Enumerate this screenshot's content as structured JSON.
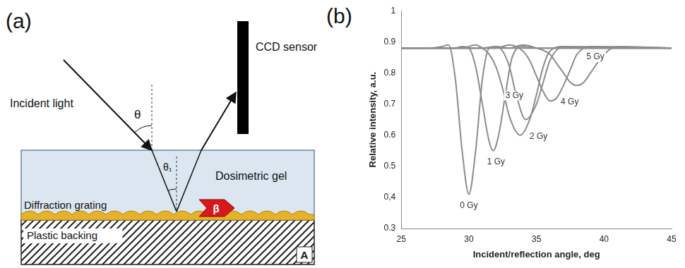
{
  "diagram": {
    "panel_label": "(a)",
    "incident_light": "Incident light",
    "theta": "θ",
    "theta_1": "θ₁",
    "ccd_sensor": "CCD sensor",
    "dosimetric_gel": "Dosimetric gel",
    "diffraction_grating": "Diffraction grating",
    "beta": "β",
    "plastic_backing": "Plastic backing",
    "corner_label": "A"
  },
  "chart_data": {
    "type": "line",
    "panel_label": "(b)",
    "x_label": "Incident/reflection angle, deg",
    "y_label": "Relative intensity, a.u.",
    "xlim": [
      25,
      45
    ],
    "xticks": [
      25,
      30,
      35,
      40,
      45
    ],
    "ylim": [
      0.3,
      1
    ],
    "yticks": [
      0.3,
      {
        "value": 0.4,
        "label": "0,4"
      },
      0.5,
      0.6,
      0.7,
      0.8,
      0.9,
      1
    ],
    "grid": false,
    "marker": "none",
    "line_style": "solid",
    "series": [
      {
        "name": "0 Gy",
        "color": "#8c8c8c",
        "x": [
          25,
          27,
          28,
          28.5,
          29,
          29.5,
          30,
          30.5,
          31,
          31.5,
          32,
          33,
          35,
          45
        ],
        "values": [
          0.88,
          0.88,
          0.885,
          0.89,
          0.78,
          0.55,
          0.41,
          0.55,
          0.78,
          0.88,
          0.885,
          0.88,
          0.88,
          0.88
        ]
      },
      {
        "name": "1 Gy",
        "color": "#8c8c8c",
        "x": [
          25,
          29,
          29.5,
          30,
          30.5,
          31,
          31.5,
          31.8,
          32.2,
          32.7,
          33.2,
          34,
          35,
          45
        ],
        "values": [
          0.88,
          0.88,
          0.885,
          0.88,
          0.82,
          0.7,
          0.58,
          0.55,
          0.6,
          0.73,
          0.85,
          0.885,
          0.88,
          0.88
        ]
      },
      {
        "name": "2 Gy",
        "color": "#8c8c8c",
        "x": [
          25,
          29.5,
          30.5,
          31,
          31.5,
          32,
          32.5,
          33,
          33.8,
          34.5,
          35,
          35.5,
          36,
          37,
          45
        ],
        "values": [
          0.88,
          0.88,
          0.89,
          0.88,
          0.86,
          0.82,
          0.75,
          0.66,
          0.6,
          0.65,
          0.73,
          0.82,
          0.87,
          0.885,
          0.88
        ]
      },
      {
        "name": "3 Gy",
        "color": "#8c8c8c",
        "x": [
          25,
          31,
          32,
          32.5,
          33,
          33.5,
          34.2,
          35,
          35.5,
          36,
          37,
          38,
          45
        ],
        "values": [
          0.88,
          0.88,
          0.885,
          0.87,
          0.82,
          0.73,
          0.65,
          0.7,
          0.77,
          0.84,
          0.885,
          0.88,
          0.88
        ]
      },
      {
        "name": "4 Gy",
        "color": "#8c8c8c",
        "x": [
          25,
          32,
          33,
          34,
          34.5,
          35,
          35.5,
          36,
          36.5,
          37,
          37.5,
          38,
          39,
          45
        ],
        "values": [
          0.88,
          0.88,
          0.89,
          0.87,
          0.84,
          0.79,
          0.74,
          0.71,
          0.72,
          0.76,
          0.81,
          0.86,
          0.885,
          0.88
        ]
      },
      {
        "name": "5 Gy",
        "color": "#8c8c8c",
        "x": [
          25,
          33,
          34,
          35,
          36,
          36.5,
          37,
          37.5,
          38,
          38.5,
          39,
          40,
          41,
          45
        ],
        "values": [
          0.88,
          0.88,
          0.89,
          0.88,
          0.86,
          0.83,
          0.8,
          0.77,
          0.76,
          0.77,
          0.8,
          0.86,
          0.885,
          0.88
        ]
      }
    ]
  }
}
